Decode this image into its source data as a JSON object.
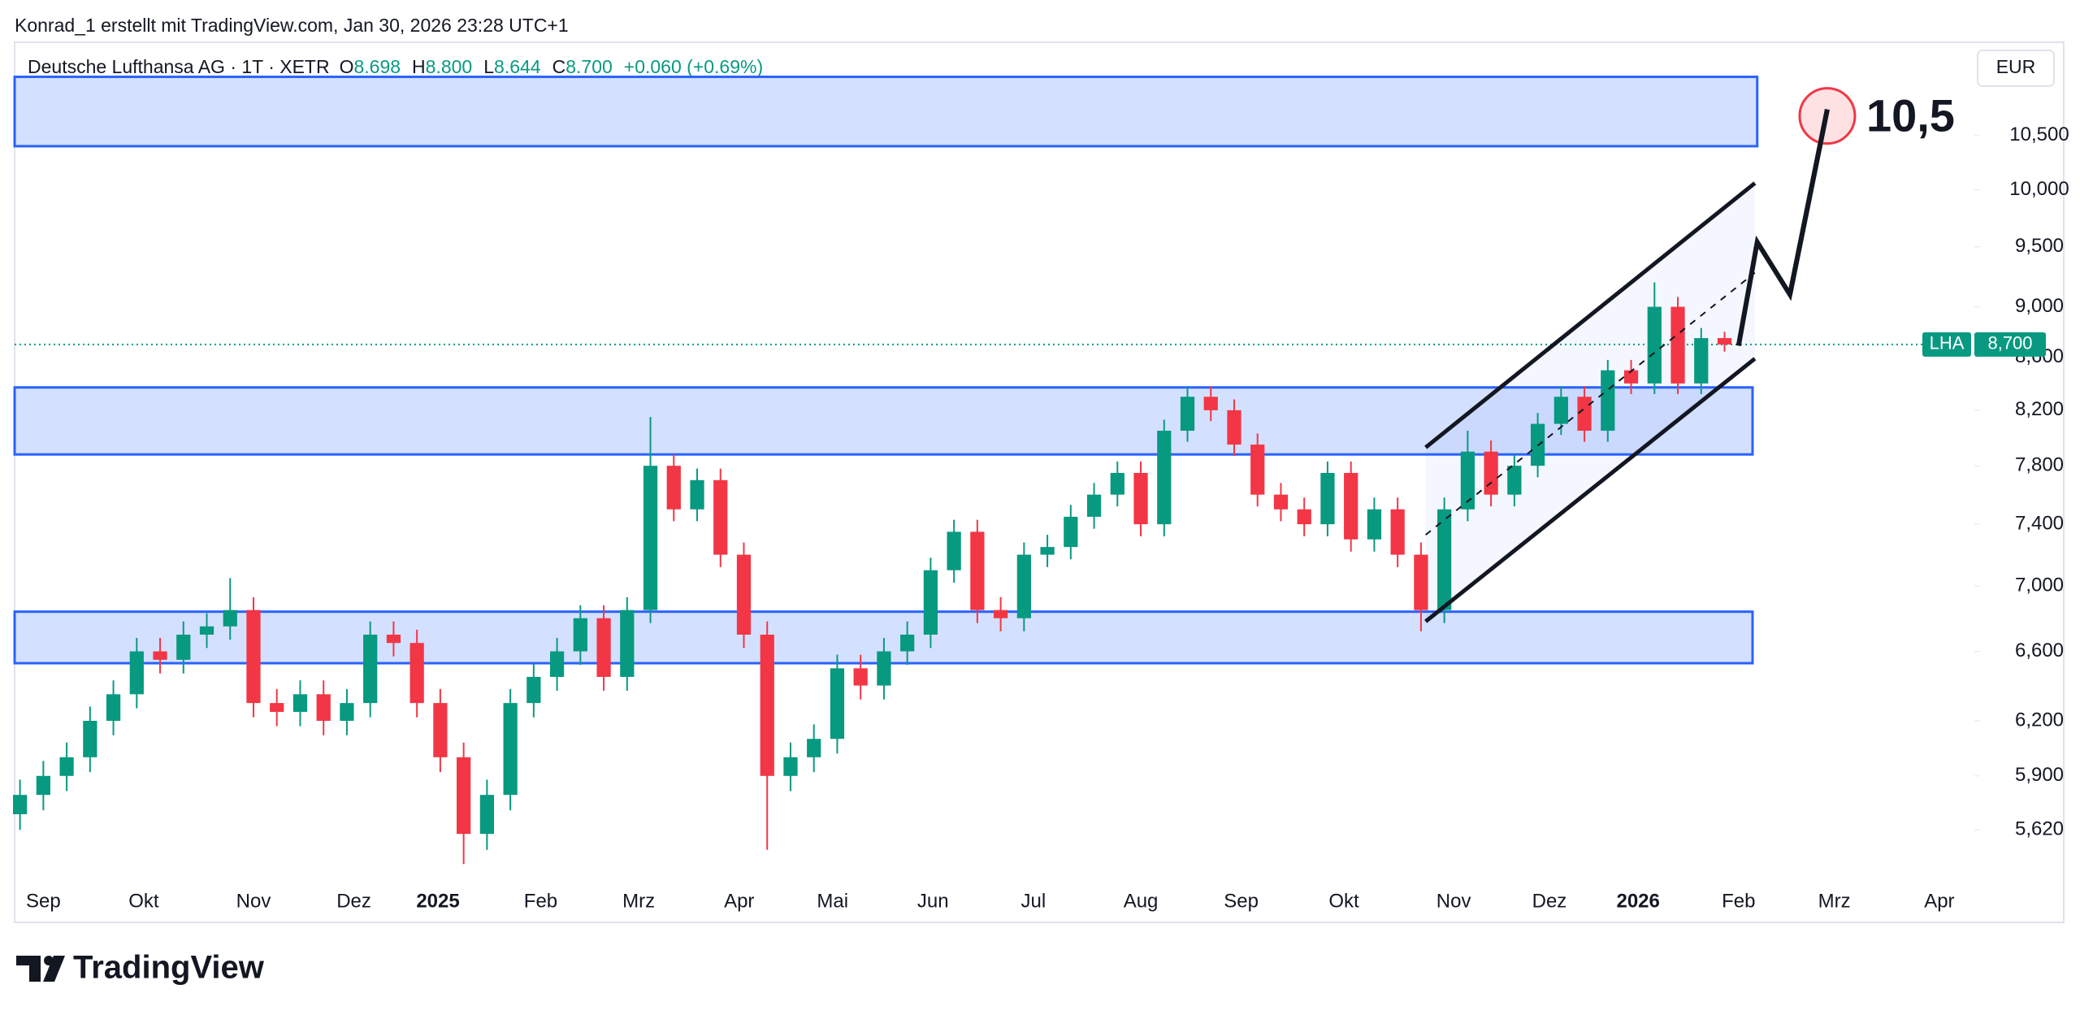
{
  "chart_data": {
    "type": "candlestick",
    "caption": "Konrad_1 erstellt mit TradingView.com, Jan 30, 2026 23:28 UTC+1",
    "title": "Deutsche Lufthansa AG · 1T · XETR",
    "legend_values": [
      {
        "key": "O",
        "text": "8.698"
      },
      {
        "key": "H",
        "text": "8.800"
      },
      {
        "key": "L",
        "text": "8.644"
      },
      {
        "key": "C",
        "text": "8.700"
      }
    ],
    "change": "+0.060 (+0.69%)",
    "currency": "EUR",
    "brand": "TradingView",
    "log_scale": true,
    "grid": false,
    "up_color": "#089981",
    "down_color": "#f23645",
    "xlim": [
      -0.23,
      83.7
    ],
    "ylim": [
      5.36,
      11.42
    ],
    "yticks": [
      {
        "value": 10.5,
        "label": "10,500"
      },
      {
        "value": 10,
        "label": "10,000"
      },
      {
        "value": 9.5,
        "label": "9,500"
      },
      {
        "value": 9,
        "label": "9,000"
      },
      {
        "value": 8.6,
        "label": "8,600"
      },
      {
        "value": 8.2,
        "label": "8,200"
      },
      {
        "value": 7.8,
        "label": "7,800"
      },
      {
        "value": 7.4,
        "label": "7,400"
      },
      {
        "value": 7,
        "label": "7,000"
      },
      {
        "value": 6.6,
        "label": "6,600"
      },
      {
        "value": 6.2,
        "label": "6,200"
      },
      {
        "value": 5.9,
        "label": "5,900"
      },
      {
        "value": 5.62,
        "label": "5,620"
      }
    ],
    "xticks": [
      {
        "value": 1.0,
        "label": "Sep"
      },
      {
        "value": 5.3,
        "label": "Okt"
      },
      {
        "value": 10.0,
        "label": "Nov"
      },
      {
        "value": 14.3,
        "label": "Dez"
      },
      {
        "value": 17.9,
        "label": "2025"
      },
      {
        "value": 22.3,
        "label": "Feb"
      },
      {
        "value": 26.5,
        "label": "Mrz"
      },
      {
        "value": 30.8,
        "label": "Apr"
      },
      {
        "value": 34.8,
        "label": "Mai"
      },
      {
        "value": 39.1,
        "label": "Jun"
      },
      {
        "value": 43.4,
        "label": "Jul"
      },
      {
        "value": 48.0,
        "label": "Aug"
      },
      {
        "value": 52.3,
        "label": "Sep"
      },
      {
        "value": 56.7,
        "label": "Okt"
      },
      {
        "value": 61.4,
        "label": "Nov"
      },
      {
        "value": 65.5,
        "label": "Dez"
      },
      {
        "value": 69.3,
        "label": "2026"
      },
      {
        "value": 73.6,
        "label": "Feb"
      },
      {
        "value": 77.7,
        "label": "Mrz"
      },
      {
        "value": 82.2,
        "label": "Apr"
      }
    ],
    "candles": [
      [
        5.7,
        5.88,
        5.62,
        5.8
      ],
      [
        5.8,
        5.98,
        5.72,
        5.9
      ],
      [
        5.9,
        6.08,
        5.82,
        6.0
      ],
      [
        6.0,
        6.28,
        5.92,
        6.2
      ],
      [
        6.2,
        6.43,
        6.12,
        6.35
      ],
      [
        6.35,
        6.68,
        6.27,
        6.6
      ],
      [
        6.6,
        6.68,
        6.47,
        6.55
      ],
      [
        6.55,
        6.78,
        6.47,
        6.7
      ],
      [
        6.7,
        6.83,
        6.62,
        6.75
      ],
      [
        6.75,
        7.05,
        6.67,
        6.85
      ],
      [
        6.85,
        6.93,
        6.22,
        6.3
      ],
      [
        6.3,
        6.38,
        6.17,
        6.25
      ],
      [
        6.25,
        6.43,
        6.17,
        6.35
      ],
      [
        6.35,
        6.43,
        6.12,
        6.2
      ],
      [
        6.2,
        6.38,
        6.12,
        6.3
      ],
      [
        6.3,
        6.78,
        6.22,
        6.7
      ],
      [
        6.7,
        6.78,
        6.57,
        6.65
      ],
      [
        6.65,
        6.73,
        6.22,
        6.3
      ],
      [
        6.3,
        6.38,
        5.92,
        6.0
      ],
      [
        6.0,
        6.08,
        5.45,
        5.6
      ],
      [
        5.6,
        5.88,
        5.52,
        5.8
      ],
      [
        5.8,
        6.38,
        5.72,
        6.3
      ],
      [
        6.3,
        6.53,
        6.22,
        6.45
      ],
      [
        6.45,
        6.68,
        6.37,
        6.6
      ],
      [
        6.6,
        6.88,
        6.52,
        6.8
      ],
      [
        6.8,
        6.88,
        6.37,
        6.45
      ],
      [
        6.45,
        6.93,
        6.37,
        6.85
      ],
      [
        6.85,
        8.15,
        6.77,
        7.8
      ],
      [
        7.8,
        7.88,
        7.42,
        7.5
      ],
      [
        7.5,
        7.78,
        7.42,
        7.7
      ],
      [
        7.7,
        7.78,
        7.12,
        7.2
      ],
      [
        7.2,
        7.28,
        6.62,
        6.7
      ],
      [
        6.7,
        6.78,
        5.52,
        5.9
      ],
      [
        5.9,
        6.08,
        5.82,
        6.0
      ],
      [
        6.0,
        6.18,
        5.92,
        6.1
      ],
      [
        6.1,
        6.58,
        6.02,
        6.5
      ],
      [
        6.5,
        6.58,
        6.32,
        6.4
      ],
      [
        6.4,
        6.68,
        6.32,
        6.6
      ],
      [
        6.6,
        6.78,
        6.52,
        6.7
      ],
      [
        6.7,
        7.18,
        6.62,
        7.1
      ],
      [
        7.1,
        7.43,
        7.02,
        7.35
      ],
      [
        7.35,
        7.43,
        6.77,
        6.85
      ],
      [
        6.85,
        6.93,
        6.72,
        6.8
      ],
      [
        6.8,
        7.28,
        6.72,
        7.2
      ],
      [
        7.2,
        7.33,
        7.12,
        7.25
      ],
      [
        7.25,
        7.53,
        7.17,
        7.45
      ],
      [
        7.45,
        7.68,
        7.37,
        7.6
      ],
      [
        7.6,
        7.83,
        7.52,
        7.75
      ],
      [
        7.75,
        7.83,
        7.32,
        7.4
      ],
      [
        7.4,
        8.13,
        7.32,
        8.05
      ],
      [
        8.05,
        8.38,
        7.97,
        8.3
      ],
      [
        8.3,
        8.38,
        8.12,
        8.2
      ],
      [
        8.2,
        8.28,
        7.87,
        7.95
      ],
      [
        7.95,
        8.03,
        7.52,
        7.6
      ],
      [
        7.6,
        7.68,
        7.42,
        7.5
      ],
      [
        7.5,
        7.58,
        7.32,
        7.4
      ],
      [
        7.4,
        7.83,
        7.32,
        7.75
      ],
      [
        7.75,
        7.83,
        7.22,
        7.3
      ],
      [
        7.3,
        7.58,
        7.22,
        7.5
      ],
      [
        7.5,
        7.58,
        7.12,
        7.2
      ],
      [
        7.2,
        7.28,
        6.72,
        6.85
      ],
      [
        6.85,
        7.58,
        6.77,
        7.5
      ],
      [
        7.5,
        8.05,
        7.42,
        7.9
      ],
      [
        7.9,
        7.98,
        7.52,
        7.6
      ],
      [
        7.6,
        7.88,
        7.52,
        7.8
      ],
      [
        7.8,
        8.18,
        7.72,
        8.1
      ],
      [
        8.1,
        8.38,
        8.02,
        8.3
      ],
      [
        8.3,
        8.38,
        7.97,
        8.05
      ],
      [
        8.05,
        8.58,
        7.97,
        8.5
      ],
      [
        8.5,
        8.58,
        8.32,
        8.4
      ],
      [
        8.4,
        9.2,
        8.32,
        9.0
      ],
      [
        9.0,
        9.08,
        8.32,
        8.4
      ],
      [
        8.4,
        8.83,
        8.32,
        8.75
      ],
      [
        8.75,
        8.8,
        8.644,
        8.7
      ]
    ],
    "zones": [
      {
        "top": 11.07,
        "bottom": 10.4,
        "end": 74.4
      },
      {
        "top": 8.37,
        "bottom": 7.88,
        "end": 74.2
      },
      {
        "top": 6.84,
        "bottom": 6.53,
        "end": 74.2
      }
    ],
    "zone_color": "#2962ff",
    "channel": [
      {
        "x": [
          60.2,
          74.3
        ],
        "values": [
          7.93,
          10.06
        ],
        "dashed": false
      },
      {
        "x": [
          60.2,
          74.3
        ],
        "values": [
          6.78,
          8.59
        ],
        "dashed": false
      },
      {
        "x": [
          60.2,
          74.3
        ],
        "values": [
          7.33,
          9.28
        ],
        "dashed": true
      }
    ],
    "projection": {
      "x": [
        73.6,
        74.4,
        75.8,
        77.4
      ],
      "values": [
        8.69,
        9.54,
        9.1,
        10.75
      ]
    },
    "target_label": "10,5",
    "last_price": {
      "symbol": "LHA",
      "value": 8.7,
      "label": "8,700"
    }
  }
}
